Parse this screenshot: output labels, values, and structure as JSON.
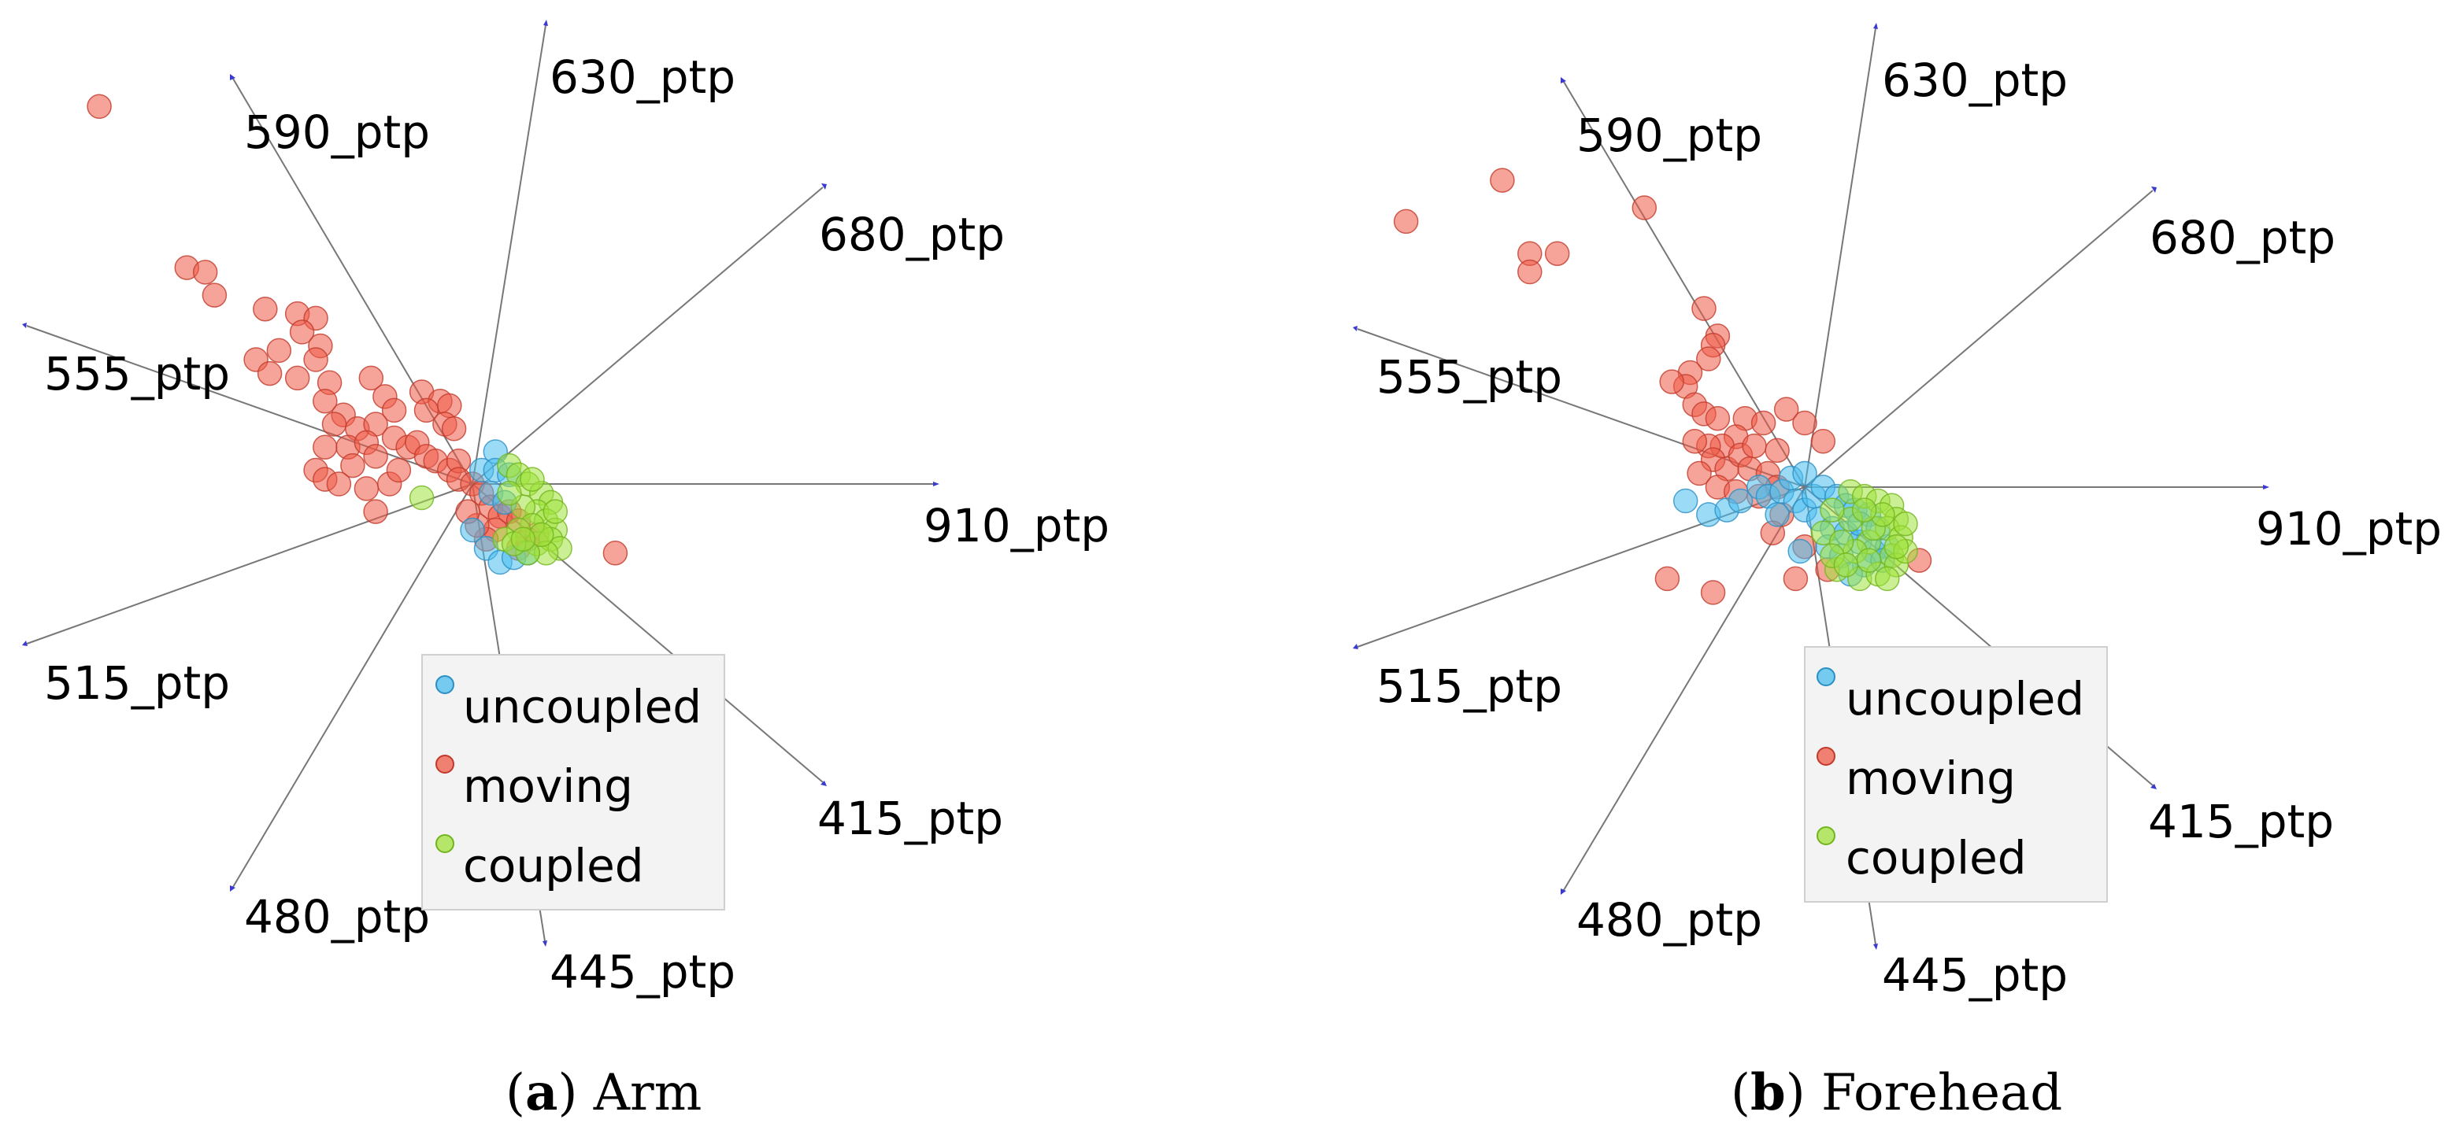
{
  "chart_data": [
    {
      "type": "scatter",
      "subtype": "radviz",
      "panel_letter": "a",
      "title": "Arm",
      "anchors": [
        "910_ptp",
        "680_ptp",
        "630_ptp",
        "590_ptp",
        "555_ptp",
        "515_ptp",
        "480_ptp",
        "445_ptp",
        "415_ptp"
      ],
      "legend": [
        "uncoupled",
        "moving",
        "coupled"
      ],
      "series": [
        {
          "name": "moving",
          "color": "#ef5a47",
          "points": [
            [
              -0.81,
              0.82
            ],
            [
              -0.62,
              0.47
            ],
            [
              -0.58,
              0.46
            ],
            [
              -0.56,
              0.41
            ],
            [
              -0.45,
              0.38
            ],
            [
              -0.38,
              0.37
            ],
            [
              -0.34,
              0.36
            ],
            [
              -0.37,
              0.33
            ],
            [
              -0.33,
              0.3
            ],
            [
              -0.42,
              0.29
            ],
            [
              -0.47,
              0.27
            ],
            [
              -0.34,
              0.27
            ],
            [
              -0.44,
              0.24
            ],
            [
              -0.38,
              0.23
            ],
            [
              -0.31,
              0.22
            ],
            [
              -0.32,
              0.18
            ],
            [
              -0.22,
              0.23
            ],
            [
              -0.19,
              0.19
            ],
            [
              -0.17,
              0.16
            ],
            [
              -0.11,
              0.2
            ],
            [
              -0.07,
              0.18
            ],
            [
              -0.05,
              0.17
            ],
            [
              -0.1,
              0.16
            ],
            [
              -0.06,
              0.13
            ],
            [
              -0.04,
              0.12
            ],
            [
              -0.28,
              0.15
            ],
            [
              -0.3,
              0.13
            ],
            [
              -0.25,
              0.12
            ],
            [
              -0.21,
              0.13
            ],
            [
              -0.32,
              0.08
            ],
            [
              -0.27,
              0.08
            ],
            [
              -0.23,
              0.09
            ],
            [
              -0.26,
              0.04
            ],
            [
              -0.21,
              0.06
            ],
            [
              -0.17,
              0.1
            ],
            [
              -0.14,
              0.08
            ],
            [
              -0.12,
              0.09
            ],
            [
              -0.1,
              0.06
            ],
            [
              -0.08,
              0.05
            ],
            [
              -0.05,
              0.03
            ],
            [
              -0.03,
              0.05
            ],
            [
              -0.34,
              0.03
            ],
            [
              -0.32,
              0.01
            ],
            [
              -0.29,
              0.0
            ],
            [
              -0.23,
              -0.01
            ],
            [
              -0.18,
              0.0
            ],
            [
              -0.16,
              0.03
            ],
            [
              -0.03,
              0.01
            ],
            [
              0.0,
              0.0
            ],
            [
              0.02,
              -0.02
            ],
            [
              0.04,
              -0.05
            ],
            [
              0.06,
              -0.07
            ],
            [
              0.08,
              -0.06
            ],
            [
              0.1,
              -0.08
            ],
            [
              0.05,
              -0.1
            ],
            [
              0.03,
              -0.12
            ],
            [
              0.12,
              -0.12
            ],
            [
              0.14,
              -0.11
            ],
            [
              0.1,
              -0.14
            ],
            [
              -0.21,
              -0.06
            ],
            [
              0.01,
              -0.09
            ],
            [
              -0.01,
              -0.06
            ],
            [
              0.31,
              -0.15
            ]
          ]
        },
        {
          "name": "uncoupled",
          "color": "#4bbdee",
          "points": [
            [
              0.05,
              0.07
            ],
            [
              0.02,
              0.03
            ],
            [
              0.05,
              0.03
            ],
            [
              0.08,
              0.02
            ],
            [
              0.04,
              -0.02
            ],
            [
              0.07,
              -0.04
            ],
            [
              0.0,
              -0.1
            ],
            [
              0.03,
              -0.14
            ],
            [
              0.06,
              -0.17
            ],
            [
              0.09,
              -0.16
            ],
            [
              0.12,
              -0.15
            ]
          ]
        },
        {
          "name": "coupled",
          "color": "#a0e23c",
          "points": [
            [
              -0.11,
              -0.03
            ],
            [
              0.08,
              0.04
            ],
            [
              0.1,
              0.02
            ],
            [
              0.12,
              0.0
            ],
            [
              0.15,
              -0.02
            ],
            [
              0.17,
              -0.04
            ],
            [
              0.14,
              -0.06
            ],
            [
              0.11,
              -0.05
            ],
            [
              0.08,
              -0.02
            ],
            [
              0.16,
              -0.08
            ],
            [
              0.18,
              -0.1
            ],
            [
              0.13,
              -0.09
            ],
            [
              0.1,
              -0.1
            ],
            [
              0.07,
              -0.12
            ],
            [
              0.14,
              -0.13
            ],
            [
              0.17,
              -0.12
            ],
            [
              0.19,
              -0.14
            ],
            [
              0.16,
              -0.15
            ],
            [
              0.12,
              -0.15
            ],
            [
              0.09,
              -0.13
            ],
            [
              0.13,
              0.01
            ],
            [
              0.18,
              -0.06
            ],
            [
              0.15,
              -0.11
            ],
            [
              0.11,
              -0.12
            ]
          ]
        }
      ]
    },
    {
      "type": "scatter",
      "subtype": "radviz",
      "panel_letter": "b",
      "title": "Forehead",
      "anchors": [
        "910_ptp",
        "680_ptp",
        "630_ptp",
        "590_ptp",
        "555_ptp",
        "515_ptp",
        "480_ptp",
        "445_ptp",
        "415_ptp"
      ],
      "legend": [
        "uncoupled",
        "moving",
        "coupled"
      ],
      "series": [
        {
          "name": "moving",
          "color": "#ef5a47",
          "points": [
            [
              -0.87,
              0.58
            ],
            [
              -0.66,
              0.67
            ],
            [
              -0.6,
              0.51
            ],
            [
              -0.6,
              0.47
            ],
            [
              -0.54,
              0.51
            ],
            [
              -0.35,
              0.61
            ],
            [
              -0.19,
              0.33
            ],
            [
              -0.22,
              0.39
            ],
            [
              -0.2,
              0.31
            ],
            [
              -0.21,
              0.28
            ],
            [
              -0.25,
              0.25
            ],
            [
              -0.26,
              0.22
            ],
            [
              -0.29,
              0.23
            ],
            [
              -0.24,
              0.18
            ],
            [
              -0.22,
              0.16
            ],
            [
              -0.19,
              0.15
            ],
            [
              -0.13,
              0.15
            ],
            [
              -0.09,
              0.14
            ],
            [
              -0.04,
              0.17
            ],
            [
              0.0,
              0.14
            ],
            [
              -0.15,
              0.11
            ],
            [
              -0.18,
              0.09
            ],
            [
              -0.21,
              0.09
            ],
            [
              -0.24,
              0.1
            ],
            [
              -0.2,
              0.06
            ],
            [
              -0.17,
              0.04
            ],
            [
              -0.23,
              0.03
            ],
            [
              -0.19,
              0.0
            ],
            [
              -0.15,
              -0.01
            ],
            [
              -0.14,
              0.07
            ],
            [
              -0.11,
              0.09
            ],
            [
              -0.12,
              0.04
            ],
            [
              -0.08,
              0.03
            ],
            [
              -0.06,
              0.0
            ],
            [
              -0.06,
              0.08
            ],
            [
              0.04,
              0.1
            ],
            [
              -0.1,
              -0.02
            ],
            [
              -0.05,
              -0.06
            ],
            [
              0.25,
              -0.16
            ],
            [
              0.0,
              -0.13
            ],
            [
              0.05,
              -0.18
            ],
            [
              -0.3,
              -0.2
            ],
            [
              -0.2,
              -0.23
            ],
            [
              -0.02,
              -0.2
            ],
            [
              -0.07,
              -0.1
            ]
          ]
        },
        {
          "name": "uncoupled",
          "color": "#4bbdee",
          "points": [
            [
              -0.26,
              -0.03
            ],
            [
              -0.21,
              -0.06
            ],
            [
              -0.17,
              -0.05
            ],
            [
              -0.14,
              -0.03
            ],
            [
              -0.1,
              0.0
            ],
            [
              -0.08,
              -0.02
            ],
            [
              -0.05,
              -0.01
            ],
            [
              -0.02,
              -0.03
            ],
            [
              0.0,
              -0.05
            ],
            [
              0.02,
              -0.02
            ],
            [
              0.04,
              0.0
            ],
            [
              0.07,
              -0.02
            ],
            [
              0.09,
              -0.04
            ],
            [
              0.11,
              -0.05
            ],
            [
              0.14,
              -0.06
            ],
            [
              0.03,
              -0.07
            ],
            [
              0.06,
              -0.09
            ],
            [
              0.09,
              -0.1
            ],
            [
              0.12,
              -0.12
            ],
            [
              0.15,
              -0.14
            ],
            [
              0.18,
              -0.13
            ],
            [
              0.05,
              -0.13
            ],
            [
              0.08,
              -0.15
            ],
            [
              0.13,
              -0.17
            ],
            [
              0.17,
              -0.16
            ],
            [
              0.1,
              -0.19
            ],
            [
              -0.03,
              0.02
            ],
            [
              0.0,
              0.03
            ],
            [
              -0.06,
              -0.06
            ],
            [
              -0.01,
              -0.14
            ],
            [
              0.12,
              -0.08
            ],
            [
              0.16,
              -0.09
            ]
          ]
        },
        {
          "name": "coupled",
          "color": "#a0e23c",
          "points": [
            [
              0.1,
              -0.01
            ],
            [
              0.13,
              -0.02
            ],
            [
              0.16,
              -0.03
            ],
            [
              0.19,
              -0.04
            ],
            [
              0.2,
              -0.07
            ],
            [
              0.18,
              -0.09
            ],
            [
              0.21,
              -0.11
            ],
            [
              0.19,
              -0.15
            ],
            [
              0.14,
              -0.12
            ],
            [
              0.11,
              -0.14
            ],
            [
              0.07,
              -0.18
            ],
            [
              0.12,
              -0.2
            ],
            [
              0.16,
              -0.19
            ],
            [
              0.2,
              -0.17
            ],
            [
              0.22,
              -0.14
            ],
            [
              0.04,
              -0.1
            ],
            [
              0.1,
              -0.07
            ],
            [
              0.15,
              -0.09
            ],
            [
              0.17,
              -0.06
            ],
            [
              0.13,
              -0.05
            ],
            [
              0.08,
              -0.12
            ],
            [
              0.06,
              -0.15
            ],
            [
              0.14,
              -0.16
            ],
            [
              0.2,
              -0.13
            ],
            [
              0.09,
              -0.17
            ],
            [
              0.18,
              -0.2
            ],
            [
              0.06,
              -0.05
            ],
            [
              0.22,
              -0.08
            ]
          ]
        }
      ]
    }
  ]
}
